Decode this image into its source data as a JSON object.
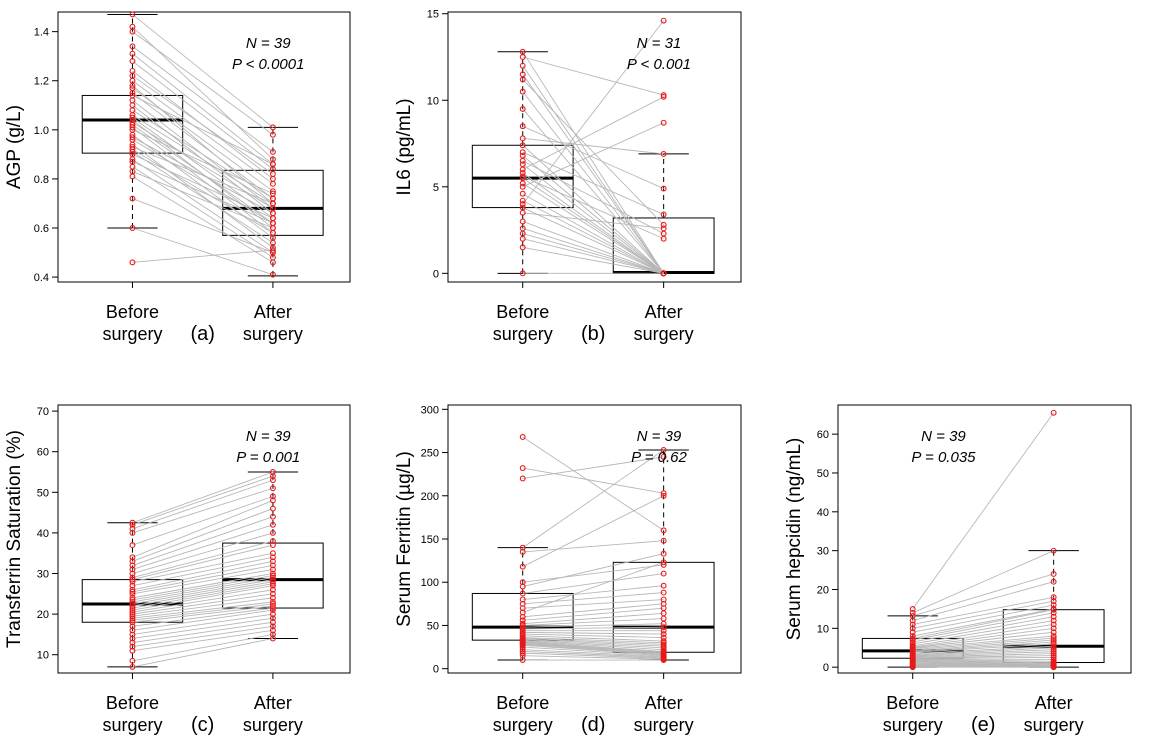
{
  "figure": {
    "group_labels": [
      [
        "Before",
        "surgery"
      ],
      [
        "After",
        "surgery"
      ]
    ],
    "colors": {
      "points": "#e8191a",
      "lines": "#b7b7b7",
      "box": "#000000"
    }
  },
  "chart_data": [
    {
      "type": "box",
      "panel_label": "(a)",
      "ylabel": "AGP (g/L)",
      "ylim": [
        0.38,
        1.48
      ],
      "yticks": [
        0.4,
        0.6,
        0.8,
        1.0,
        1.2,
        1.4
      ],
      "ytick_labels": [
        "0.4",
        "0.6",
        "0.8",
        "1.0",
        "1.2",
        "1.4"
      ],
      "annotation": [
        "N = 39",
        "P < 0.0001"
      ],
      "annotation_position": "top-right",
      "categories": [
        "Before surgery",
        "After surgery"
      ],
      "boxes": [
        {
          "whisker_low": 0.6,
          "q1": 0.905,
          "median": 1.04,
          "q3": 1.14,
          "whisker_high": 1.47
        },
        {
          "whisker_low": 0.405,
          "q1": 0.57,
          "median": 0.68,
          "q3": 0.835,
          "whisker_high": 1.01
        }
      ],
      "pairs": [
        [
          1.47,
          1.01
        ],
        [
          1.42,
          0.88
        ],
        [
          1.4,
          0.98
        ],
        [
          1.34,
          0.91
        ],
        [
          1.31,
          0.86
        ],
        [
          1.28,
          0.84
        ],
        [
          1.24,
          0.8
        ],
        [
          1.22,
          0.82
        ],
        [
          1.2,
          0.78
        ],
        [
          1.18,
          0.7
        ],
        [
          1.17,
          0.75
        ],
        [
          1.15,
          0.72
        ],
        [
          1.14,
          0.86
        ],
        [
          1.12,
          0.68
        ],
        [
          1.1,
          0.66
        ],
        [
          1.08,
          0.72
        ],
        [
          1.06,
          0.7
        ],
        [
          1.05,
          0.64
        ],
        [
          1.04,
          0.6
        ],
        [
          1.03,
          0.68
        ],
        [
          1.02,
          0.62
        ],
        [
          1.01,
          0.58
        ],
        [
          1.0,
          0.74
        ],
        [
          0.98,
          0.56
        ],
        [
          0.97,
          0.66
        ],
        [
          0.96,
          0.62
        ],
        [
          0.94,
          0.52
        ],
        [
          0.93,
          0.7
        ],
        [
          0.92,
          0.58
        ],
        [
          0.91,
          0.54
        ],
        [
          0.9,
          0.64
        ],
        [
          0.88,
          0.5
        ],
        [
          0.87,
          0.62
        ],
        [
          0.85,
          0.48
        ],
        [
          0.83,
          0.6
        ],
        [
          0.81,
          0.46
        ],
        [
          0.72,
          0.5
        ],
        [
          0.6,
          0.41
        ],
        [
          0.46,
          0.51
        ]
      ]
    },
    {
      "type": "box",
      "panel_label": "(b)",
      "ylabel": "IL6 (pg/mL)",
      "ylim": [
        -0.5,
        15.1
      ],
      "yticks": [
        0,
        5,
        10,
        15
      ],
      "ytick_labels": [
        "0",
        "5",
        "10",
        "15"
      ],
      "annotation": [
        "N = 31",
        "P < 0.001"
      ],
      "annotation_position": "top-right",
      "categories": [
        "Before surgery",
        "After surgery"
      ],
      "boxes": [
        {
          "whisker_low": 0.0,
          "q1": 3.8,
          "median": 5.5,
          "q3": 7.4,
          "whisker_high": 12.8
        },
        {
          "whisker_low": 0.0,
          "q1": 0.0,
          "median": 0.05,
          "q3": 3.2,
          "whisker_high": 6.9
        }
      ],
      "pairs": [
        [
          12.8,
          0
        ],
        [
          12.5,
          10.3
        ],
        [
          12.0,
          0
        ],
        [
          11.5,
          0
        ],
        [
          11.2,
          2.8
        ],
        [
          10.5,
          0
        ],
        [
          9.5,
          0
        ],
        [
          8.5,
          4.9
        ],
        [
          7.8,
          6.9
        ],
        [
          7.4,
          0
        ],
        [
          7.0,
          3.4
        ],
        [
          6.8,
          0
        ],
        [
          6.5,
          2.3
        ],
        [
          6.3,
          0
        ],
        [
          6.0,
          10.2
        ],
        [
          5.8,
          0
        ],
        [
          5.6,
          2.0
        ],
        [
          5.5,
          0
        ],
        [
          5.2,
          0
        ],
        [
          5.0,
          8.7
        ],
        [
          4.6,
          0
        ],
        [
          4.2,
          0
        ],
        [
          4.0,
          14.6
        ],
        [
          3.8,
          0
        ],
        [
          3.5,
          2.6
        ],
        [
          3.0,
          0
        ],
        [
          2.6,
          0
        ],
        [
          2.3,
          0
        ],
        [
          2.0,
          0
        ],
        [
          1.5,
          0
        ],
        [
          0.0,
          0
        ]
      ]
    },
    {
      "type": "box",
      "panel_label": "(c)",
      "ylabel": "Transferrin Saturation (%)",
      "ylim": [
        5.5,
        71.5
      ],
      "yticks": [
        10,
        20,
        30,
        40,
        50,
        60,
        70
      ],
      "ytick_labels": [
        "10",
        "20",
        "30",
        "40",
        "50",
        "60",
        "70"
      ],
      "annotation": [
        "N = 39",
        "P = 0.001"
      ],
      "annotation_position": "top-right",
      "categories": [
        "Before surgery",
        "After surgery"
      ],
      "boxes": [
        {
          "whisker_low": 7.0,
          "q1": 18.0,
          "median": 22.5,
          "q3": 28.5,
          "whisker_high": 42.5
        },
        {
          "whisker_low": 14.0,
          "q1": 21.5,
          "median": 28.5,
          "q3": 37.5,
          "whisker_high": 55.0
        }
      ],
      "pairs": [
        [
          42.5,
          55
        ],
        [
          42,
          54
        ],
        [
          41,
          53
        ],
        [
          40,
          51
        ],
        [
          37,
          49
        ],
        [
          34,
          48
        ],
        [
          33,
          46
        ],
        [
          32,
          44
        ],
        [
          31,
          42
        ],
        [
          30,
          40
        ],
        [
          29,
          38
        ],
        [
          28.5,
          37
        ],
        [
          28,
          35
        ],
        [
          27,
          34
        ],
        [
          26,
          33
        ],
        [
          25.5,
          32
        ],
        [
          25,
          31
        ],
        [
          24,
          30
        ],
        [
          23.5,
          29.5
        ],
        [
          23,
          29
        ],
        [
          22.5,
          28.5
        ],
        [
          22,
          28
        ],
        [
          21.5,
          27.5
        ],
        [
          21,
          27
        ],
        [
          20.5,
          26
        ],
        [
          20,
          25
        ],
        [
          19.5,
          24
        ],
        [
          19,
          23
        ],
        [
          18.5,
          22.5
        ],
        [
          18,
          22
        ],
        [
          17,
          21.5
        ],
        [
          16,
          21
        ],
        [
          15,
          20
        ],
        [
          14,
          19
        ],
        [
          13,
          18
        ],
        [
          12,
          17
        ],
        [
          11,
          16
        ],
        [
          8.5,
          15
        ],
        [
          7,
          14
        ]
      ]
    },
    {
      "type": "box",
      "panel_label": "(d)",
      "ylabel": "Serum Ferritin (µg/L)",
      "ylim": [
        -5,
        305
      ],
      "yticks": [
        0,
        50,
        100,
        150,
        200,
        250,
        300
      ],
      "ytick_labels": [
        "0",
        "50",
        "100",
        "150",
        "200",
        "250",
        "300"
      ],
      "annotation": [
        "N = 39",
        "P = 0.62"
      ],
      "annotation_position": "top-right",
      "categories": [
        "Before surgery",
        "After surgery"
      ],
      "boxes": [
        {
          "whisker_low": 10,
          "q1": 33,
          "median": 48,
          "q3": 87,
          "whisker_high": 140
        },
        {
          "whisker_low": 10,
          "q1": 19,
          "median": 48,
          "q3": 123,
          "whisker_high": 253
        }
      ],
      "pairs": [
        [
          268,
          160
        ],
        [
          232,
          203
        ],
        [
          220,
          245
        ],
        [
          140,
          253
        ],
        [
          135,
          148
        ],
        [
          118,
          200
        ],
        [
          100,
          120
        ],
        [
          95,
          133
        ],
        [
          87,
          110
        ],
        [
          80,
          96
        ],
        [
          75,
          88
        ],
        [
          70,
          80
        ],
        [
          65,
          123
        ],
        [
          60,
          75
        ],
        [
          56,
          70
        ],
        [
          52,
          64
        ],
        [
          50,
          58
        ],
        [
          48,
          52
        ],
        [
          46,
          48
        ],
        [
          44,
          44
        ],
        [
          42,
          40
        ],
        [
          40,
          36
        ],
        [
          38,
          32
        ],
        [
          36,
          30
        ],
        [
          35,
          28
        ],
        [
          34,
          26
        ],
        [
          33,
          24
        ],
        [
          32,
          22
        ],
        [
          31,
          20
        ],
        [
          30,
          19
        ],
        [
          29,
          18
        ],
        [
          28,
          17
        ],
        [
          27,
          16
        ],
        [
          25,
          15
        ],
        [
          22,
          14
        ],
        [
          20,
          13
        ],
        [
          18,
          12
        ],
        [
          15,
          11
        ],
        [
          10,
          10
        ]
      ]
    },
    {
      "type": "box",
      "panel_label": "(e)",
      "ylabel": "Serum hepcidin (ng/mL)",
      "ylim": [
        -1.5,
        67.5
      ],
      "yticks": [
        0,
        10,
        20,
        30,
        40,
        50,
        60
      ],
      "ytick_labels": [
        "0",
        "10",
        "20",
        "30",
        "40",
        "50",
        "60"
      ],
      "annotation": [
        "N = 39",
        "P = 0.035"
      ],
      "annotation_position": "top-left",
      "categories": [
        "Before surgery",
        "After surgery"
      ],
      "boxes": [
        {
          "whisker_low": 0.0,
          "q1": 2.3,
          "median": 4.2,
          "q3": 7.4,
          "whisker_high": 13.2
        },
        {
          "whisker_low": 0.0,
          "q1": 1.2,
          "median": 5.4,
          "q3": 14.8,
          "whisker_high": 30.0
        }
      ],
      "pairs": [
        [
          15,
          65.5
        ],
        [
          14,
          30
        ],
        [
          13.2,
          24
        ],
        [
          12,
          22
        ],
        [
          11,
          18
        ],
        [
          10,
          17
        ],
        [
          9,
          16
        ],
        [
          8,
          15
        ],
        [
          7.4,
          14.8
        ],
        [
          7,
          14
        ],
        [
          6.5,
          13
        ],
        [
          6,
          12
        ],
        [
          5.5,
          11
        ],
        [
          5.2,
          10
        ],
        [
          5,
          9
        ],
        [
          4.8,
          8
        ],
        [
          4.5,
          7.5
        ],
        [
          4.2,
          7
        ],
        [
          4,
          6.5
        ],
        [
          3.8,
          6
        ],
        [
          3.5,
          5.4
        ],
        [
          3.2,
          5
        ],
        [
          3,
          4.5
        ],
        [
          2.8,
          4
        ],
        [
          2.6,
          3.5
        ],
        [
          2.4,
          3
        ],
        [
          2.3,
          2.5
        ],
        [
          2.1,
          2
        ],
        [
          2,
          1.5
        ],
        [
          1.8,
          1.2
        ],
        [
          1.6,
          1
        ],
        [
          1.4,
          0.8
        ],
        [
          1.2,
          0.6
        ],
        [
          1,
          0.5
        ],
        [
          0.8,
          0.4
        ],
        [
          0.6,
          0.3
        ],
        [
          0.4,
          0.2
        ],
        [
          0.2,
          0.1
        ],
        [
          0,
          0
        ]
      ]
    }
  ]
}
